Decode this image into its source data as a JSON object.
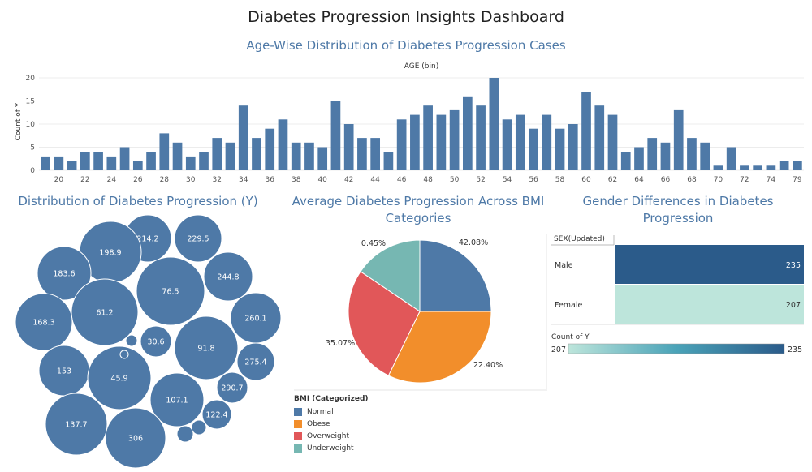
{
  "dashboard": {
    "title": "Diabetes Progression Insights Dashboard"
  },
  "colors": {
    "primary_blue": "#4e79a7",
    "orange": "#f28e2b",
    "red": "#e15759",
    "teal": "#76b7b2",
    "dark_blue": "#2b5b8a",
    "mint": "#bde5db"
  },
  "chart_data": [
    {
      "id": "age_distribution",
      "type": "bar",
      "title": "Age-Wise Distribution of Diabetes Progression Cases",
      "xlabel": "AGE (bin)",
      "ylabel": "Count of Y",
      "ylim": [
        0,
        20
      ],
      "yticks": [
        0,
        5,
        10,
        15,
        20
      ],
      "grid": true,
      "x": [
        19,
        20,
        21,
        22,
        23,
        24,
        25,
        26,
        27,
        28,
        29,
        30,
        31,
        32,
        33,
        34,
        35,
        36,
        37,
        38,
        39,
        40,
        41,
        42,
        43,
        44,
        45,
        46,
        47,
        48,
        49,
        50,
        51,
        52,
        53,
        54,
        55,
        56,
        57,
        58,
        59,
        60,
        61,
        62,
        63,
        64,
        65,
        66,
        67,
        68,
        69,
        70,
        71,
        72,
        73,
        74,
        75,
        79
      ],
      "values": [
        3,
        3,
        2,
        4,
        4,
        3,
        5,
        2,
        4,
        8,
        6,
        3,
        4,
        7,
        6,
        14,
        7,
        9,
        11,
        6,
        6,
        5,
        15,
        10,
        7,
        7,
        4,
        11,
        12,
        14,
        12,
        13,
        16,
        14,
        20,
        11,
        12,
        9,
        12,
        9,
        10,
        17,
        14,
        12,
        4,
        5,
        7,
        6,
        13,
        7,
        6,
        1,
        5,
        1,
        1,
        1,
        2,
        2
      ],
      "xtick_labels": [
        "20",
        "22",
        "24",
        "26",
        "28",
        "30",
        "32",
        "34",
        "36",
        "38",
        "40",
        "42",
        "44",
        "46",
        "48",
        "50",
        "52",
        "54",
        "56",
        "58",
        "60",
        "62",
        "64",
        "66",
        "68",
        "70",
        "72",
        "74",
        "79"
      ]
    },
    {
      "id": "y_distribution",
      "type": "bubble",
      "title": "Distribution of Diabetes Progression (Y)",
      "labels": [
        "214.2",
        "229.5",
        "198.9",
        "183.6",
        "244.8",
        "76.5",
        "61.2",
        "168.3",
        "260.1",
        "30.6",
        "91.8",
        "275.4",
        "153",
        "45.9",
        "290.7",
        "107.1",
        "137.7",
        "306",
        "122.4",
        "",
        "",
        "",
        ""
      ]
    },
    {
      "id": "bmi_pie",
      "type": "pie",
      "title": "Average Diabetes Progression Across BMI Categories",
      "legend_title": "BMI (Categorized)",
      "legend_position": "bottom-left",
      "series": [
        {
          "name": "Normal",
          "value": 42.08,
          "label": "42.08%",
          "color": "#4e79a7"
        },
        {
          "name": "Obese",
          "value": 22.4,
          "label": "22.40%",
          "color": "#f28e2b"
        },
        {
          "name": "Overweight",
          "value": 35.07,
          "label": "35.07%",
          "color": "#e15759"
        },
        {
          "name": "Underweight",
          "value": 0.45,
          "label": "0.45%",
          "color": "#76b7b2"
        }
      ]
    },
    {
      "id": "gender_heatmap",
      "type": "heatmap",
      "title": "Gender Differences in Diabetes Progression",
      "row_header": "SEX(Updated)",
      "rows": [
        {
          "name": "Male",
          "value": 235,
          "color": "#2b5b8a"
        },
        {
          "name": "Female",
          "value": 207,
          "color": "#bde5db"
        }
      ],
      "legend_title": "Count of Y",
      "legend_min": 207,
      "legend_max": 235
    }
  ]
}
